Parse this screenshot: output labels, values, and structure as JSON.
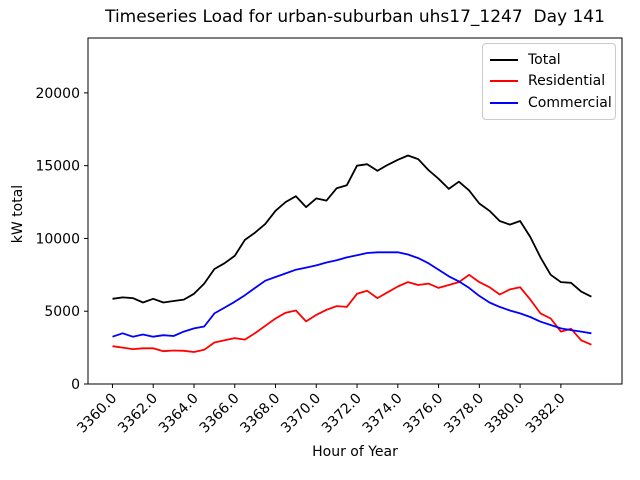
{
  "chart_data": {
    "type": "line",
    "title": "Timeseries Load for urban-suburban uhs17_1247  Day 141",
    "xlabel": "Hour of Year",
    "ylabel": "kW total",
    "legend_position": "upper right",
    "grid": false,
    "xlim": [
      3358.8,
      3385.0
    ],
    "ylim": [
      0,
      23770
    ],
    "xticks": [
      3360.0,
      3362.0,
      3364.0,
      3366.0,
      3368.0,
      3370.0,
      3372.0,
      3374.0,
      3376.0,
      3378.0,
      3380.0,
      3382.0
    ],
    "yticks": [
      0,
      5000,
      10000,
      15000,
      20000
    ],
    "x_start": 3360.0,
    "x_step": 0.5,
    "x": [
      3360.0,
      3360.5,
      3361.0,
      3361.5,
      3362.0,
      3362.5,
      3363.0,
      3363.5,
      3364.0,
      3364.5,
      3365.0,
      3365.5,
      3366.0,
      3366.5,
      3367.0,
      3367.5,
      3368.0,
      3368.5,
      3369.0,
      3369.5,
      3370.0,
      3370.5,
      3371.0,
      3371.5,
      3372.0,
      3372.5,
      3373.0,
      3373.5,
      3374.0,
      3374.5,
      3375.0,
      3375.5,
      3376.0,
      3376.5,
      3377.0,
      3377.5,
      3378.0,
      3378.5,
      3379.0,
      3379.5,
      3380.0,
      3380.5,
      3381.0,
      3381.5,
      3382.0,
      3382.5,
      3383.0,
      3383.5
    ],
    "series": [
      {
        "name": "Total",
        "color": "#000000",
        "values": [
          5850,
          5950,
          5900,
          5600,
          5850,
          5600,
          5700,
          5800,
          6200,
          6900,
          7900,
          8300,
          8800,
          9900,
          10400,
          11000,
          11900,
          12500,
          12900,
          12150,
          12750,
          12600,
          13450,
          13650,
          15000,
          15100,
          14650,
          15050,
          15400,
          15700,
          15450,
          14700,
          14100,
          13400,
          13900,
          13300,
          12400,
          11900,
          11200,
          10950,
          11200,
          10100,
          8700,
          7500,
          7000,
          6950,
          6350,
          6000
        ]
      },
      {
        "name": "Residential",
        "color": "#ff0000",
        "values": [
          2600,
          2500,
          2400,
          2450,
          2450,
          2250,
          2300,
          2280,
          2200,
          2350,
          2850,
          3000,
          3150,
          3050,
          3500,
          4000,
          4500,
          4900,
          5050,
          4300,
          4750,
          5100,
          5350,
          5300,
          6200,
          6400,
          5900,
          6300,
          6700,
          7000,
          6800,
          6900,
          6600,
          6800,
          7000,
          7500,
          7000,
          6650,
          6150,
          6500,
          6650,
          5800,
          4850,
          4500,
          3600,
          3800,
          3000,
          2700
        ]
      },
      {
        "name": "Commercial",
        "color": "#0000ff",
        "values": [
          3250,
          3480,
          3250,
          3400,
          3250,
          3350,
          3300,
          3600,
          3820,
          3950,
          4850,
          5250,
          5650,
          6100,
          6600,
          7100,
          7350,
          7600,
          7850,
          8000,
          8150,
          8350,
          8500,
          8700,
          8850,
          9000,
          9050,
          9050,
          9050,
          8900,
          8650,
          8300,
          7850,
          7400,
          7050,
          6600,
          6050,
          5600,
          5300,
          5050,
          4850,
          4600,
          4280,
          4050,
          3820,
          3700,
          3600,
          3480
        ]
      }
    ]
  }
}
